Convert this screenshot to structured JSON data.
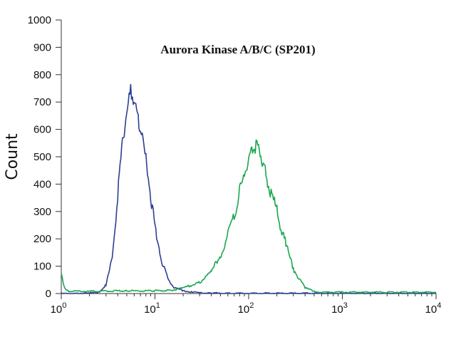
{
  "chart_data": {
    "type": "line",
    "title": "Aurora Kinase A/B/C (SP201)",
    "ylabel": "Count",
    "xlabel": "",
    "x_scale": "log",
    "xlim": [
      1,
      10000
    ],
    "ylim": [
      0,
      1000
    ],
    "grid": false,
    "legend": "none",
    "x_ticks": [
      {
        "value": 1,
        "base": "10",
        "exp": "0"
      },
      {
        "value": 10,
        "base": "10",
        "exp": "1"
      },
      {
        "value": 100,
        "base": "10",
        "exp": "2"
      },
      {
        "value": 1000,
        "base": "10",
        "exp": "3"
      },
      {
        "value": 10000,
        "base": "10",
        "exp": "4"
      }
    ],
    "y_ticks": [
      0,
      100,
      200,
      300,
      400,
      500,
      600,
      700,
      800,
      900,
      1000
    ],
    "series": [
      {
        "color": "#2b3f94",
        "x": [
          1,
          1.5,
          2,
          2.5,
          3,
          3.5,
          4,
          4.5,
          5,
          5.5,
          6,
          6.5,
          7,
          8,
          9,
          10,
          12,
          14,
          16,
          20,
          25,
          30,
          40,
          60,
          100,
          300,
          1000,
          10000
        ],
        "y": [
          0,
          0,
          2,
          5,
          30,
          130,
          360,
          560,
          660,
          740,
          700,
          640,
          600,
          490,
          360,
          240,
          110,
          45,
          22,
          10,
          5,
          3,
          2,
          1,
          1,
          1,
          1,
          1
        ]
      },
      {
        "color": "#1aa64f",
        "x": [
          1,
          1.05,
          1.1,
          1.2,
          2,
          5,
          10,
          15,
          20,
          30,
          40,
          50,
          60,
          70,
          80,
          90,
          100,
          110,
          120,
          130,
          140,
          150,
          170,
          200,
          250,
          300,
          400,
          500,
          600,
          1000,
          10000
        ],
        "y": [
          70,
          40,
          15,
          8,
          8,
          10,
          10,
          12,
          20,
          40,
          80,
          140,
          210,
          290,
          370,
          440,
          490,
          520,
          545,
          530,
          490,
          450,
          380,
          300,
          180,
          90,
          20,
          8,
          5,
          5,
          5
        ]
      }
    ]
  }
}
